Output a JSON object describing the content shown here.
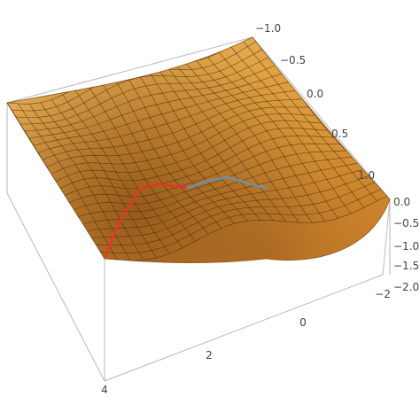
{
  "chart_data": {
    "type": "surface",
    "title": "",
    "x_axis": {
      "label": "",
      "ticks": [
        "4",
        "2",
        "0",
        "−2"
      ],
      "range": [
        -2,
        4
      ]
    },
    "y_axis": {
      "label": "",
      "ticks": [
        "−1.0",
        "−0.5",
        "0.0",
        "0.5",
        "1.0"
      ],
      "range": [
        -1,
        1
      ]
    },
    "z_axis": {
      "label": "",
      "ticks": [
        "0.0",
        "−0.5",
        "−1.0",
        "−1.5",
        "−2.0"
      ],
      "range": [
        -2,
        0
      ]
    },
    "surface": {
      "description_grid": "mesh",
      "colors": {
        "top": "#f0b555",
        "mid": "#d88e2d",
        "low": "#9b5b1c",
        "mesh": "#3d2a12"
      }
    },
    "paths": [
      {
        "color": "#e8342a",
        "x": [
          4.0,
          3.6,
          3.2,
          2.9,
          2.6
        ],
        "y": [
          -0.3,
          -0.1,
          0.2,
          0.4,
          0.55
        ],
        "z": [
          -1.5,
          -1.1,
          -0.6,
          -0.45,
          -0.5
        ]
      },
      {
        "color": "#6f8fb5",
        "x": [
          2.6,
          2.2,
          1.8,
          1.4,
          1.0
        ],
        "y": [
          0.55,
          0.45,
          0.35,
          0.4,
          0.5
        ],
        "z": [
          -0.5,
          -0.45,
          -0.4,
          -0.45,
          -0.5
        ]
      }
    ]
  }
}
